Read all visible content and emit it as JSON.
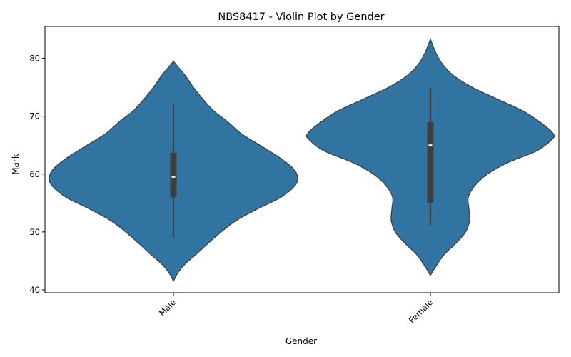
{
  "chart_data": {
    "type": "violin",
    "title": "NBS8417 - Violin Plot by Gender",
    "xlabel": "Gender",
    "ylabel": "Mark",
    "ylim": [
      39.5,
      85.5
    ],
    "yticks": [
      40,
      50,
      60,
      70,
      80
    ],
    "grid": false,
    "categories": [
      "Male",
      "Female"
    ],
    "violin_color": "#3274a1",
    "edge_color": "#3f3f3f",
    "series": [
      {
        "category": "Male",
        "min": 49,
        "q1": 56,
        "median": 59.5,
        "q3": 63.7,
        "max": 72,
        "density": [
          [
            41.5,
            0.0
          ],
          [
            43,
            0.07
          ],
          [
            44.5,
            0.18
          ],
          [
            46,
            0.33
          ],
          [
            48,
            0.52
          ],
          [
            50,
            0.72
          ],
          [
            52,
            0.95
          ],
          [
            54,
            1.27
          ],
          [
            56,
            1.62
          ],
          [
            58,
            1.83
          ],
          [
            59.5,
            1.87
          ],
          [
            61,
            1.8
          ],
          [
            63,
            1.58
          ],
          [
            65,
            1.3
          ],
          [
            67,
            1.02
          ],
          [
            69,
            0.82
          ],
          [
            71,
            0.6
          ],
          [
            73,
            0.44
          ],
          [
            75,
            0.3
          ],
          [
            77,
            0.18
          ],
          [
            78.5,
            0.07
          ],
          [
            79.5,
            0.0
          ]
        ]
      },
      {
        "category": "Female",
        "min": 51,
        "q1": 55,
        "median": 65,
        "q3": 69,
        "max": 75,
        "density": [
          [
            42.5,
            0.0
          ],
          [
            44,
            0.08
          ],
          [
            46,
            0.2
          ],
          [
            48,
            0.38
          ],
          [
            50,
            0.53
          ],
          [
            52,
            0.59
          ],
          [
            54,
            0.58
          ],
          [
            56,
            0.57
          ],
          [
            58,
            0.67
          ],
          [
            60,
            0.86
          ],
          [
            62,
            1.17
          ],
          [
            64,
            1.6
          ],
          [
            66,
            1.83
          ],
          [
            67,
            1.85
          ],
          [
            69,
            1.65
          ],
          [
            71,
            1.38
          ],
          [
            73,
            1.0
          ],
          [
            75,
            0.63
          ],
          [
            77,
            0.35
          ],
          [
            79,
            0.18
          ],
          [
            81,
            0.08
          ],
          [
            83.3,
            0.0
          ]
        ]
      }
    ]
  }
}
